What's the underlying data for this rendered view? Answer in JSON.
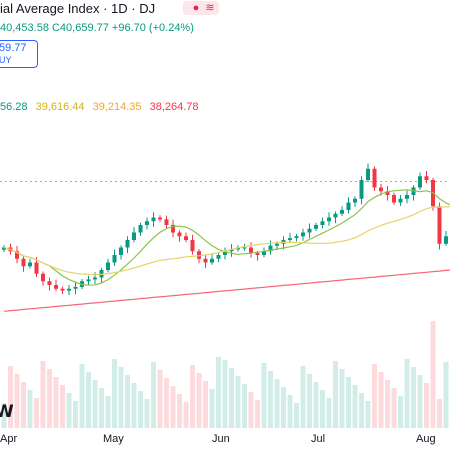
{
  "header": {
    "title": "ial Average Index · 1D · DJ",
    "indicator_icon": "wave-icon",
    "ohlc": "40,453.58  C40,659.77  +96.70 (+0.24%)"
  },
  "buy_box": {
    "price": "59.77",
    "label": "UY"
  },
  "moving_averages": [
    {
      "value": "56.28",
      "color": "#089981"
    },
    {
      "value": "39,616.44",
      "color": "#e8c12a"
    },
    {
      "value": "39,214.35",
      "color": "#f5a623"
    },
    {
      "value": "38,264.78",
      "color": "#f23645"
    }
  ],
  "x_axis": {
    "labels": [
      "Apr",
      "May",
      "Jun",
      "Jul",
      "Aug"
    ]
  },
  "logo": {
    "text": "W"
  },
  "colors": {
    "up": "#089981",
    "down": "#f23645",
    "ma_short": "#8bc34a",
    "ma_mid": "#e8d36a",
    "ma_long": "#f23645"
  },
  "chart_data": {
    "type": "candlestick",
    "approx_price_range": [
      37500,
      41500
    ],
    "dashed_reference_price": 40660,
    "closes": [
      38900,
      38800,
      38600,
      38400,
      38500,
      38200,
      38000,
      37900,
      37800,
      37750,
      37800,
      37850,
      38000,
      38050,
      38100,
      38300,
      38500,
      38700,
      38900,
      39100,
      39300,
      39500,
      39600,
      39700,
      39650,
      39500,
      39300,
      39200,
      39100,
      38800,
      38600,
      38500,
      38600,
      38700,
      38800,
      38850,
      38900,
      38900,
      38750,
      38700,
      38800,
      38950,
      39000,
      39100,
      39150,
      39200,
      39300,
      39400,
      39500,
      39600,
      39700,
      39800,
      39900,
      40100,
      40200,
      40700,
      41000,
      40500,
      40400,
      40300,
      40100,
      40200,
      40300,
      40500,
      40800,
      40700,
      40000,
      39000,
      39200,
      39600
    ]
  }
}
